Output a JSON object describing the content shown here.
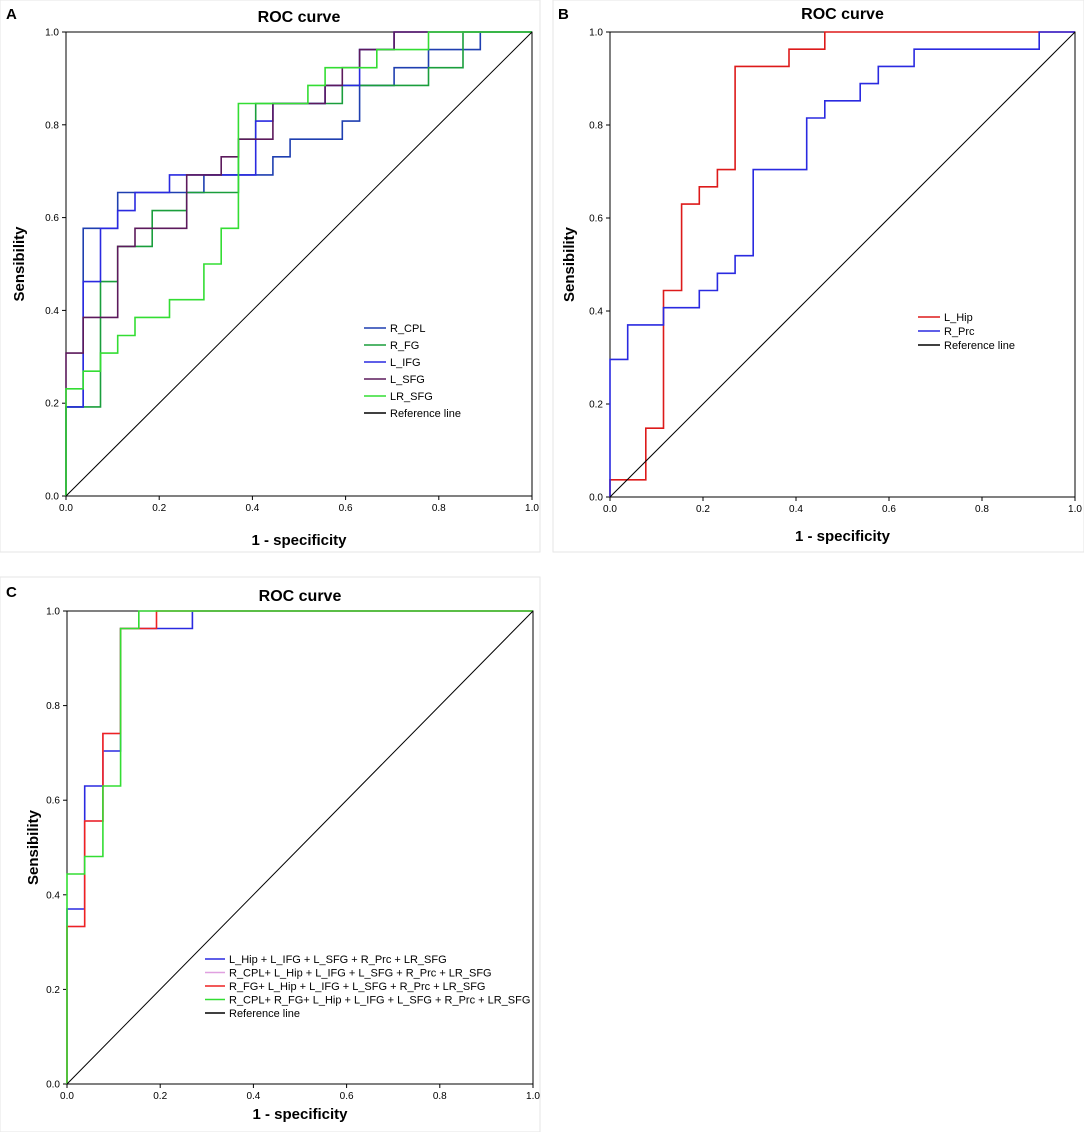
{
  "chart_data": [
    {
      "panel": "A",
      "type": "line",
      "title": "ROC curve",
      "xlabel": "1 - specificity",
      "ylabel": "Sensibility",
      "xlim": [
        0,
        1
      ],
      "ylim": [
        0,
        1
      ],
      "xticks": [
        "0.0",
        "0.2",
        "0.4",
        "0.6",
        "0.8",
        "1.0"
      ],
      "yticks": [
        "0.0",
        "0.2",
        "0.4",
        "0.6",
        "0.8",
        "1.0"
      ],
      "legend_position": "lower-right",
      "series": [
        {
          "name": "R_CPL",
          "color": "#1f3fb0",
          "points": [
            [
              0,
              0
            ],
            [
              0,
              0.192
            ],
            [
              0.037,
              0.192
            ],
            [
              0.037,
              0.577
            ],
            [
              0.074,
              0.577
            ],
            [
              0.074,
              0.577
            ],
            [
              0.111,
              0.577
            ],
            [
              0.111,
              0.654
            ],
            [
              0.296,
              0.654
            ],
            [
              0.296,
              0.692
            ],
            [
              0.444,
              0.692
            ],
            [
              0.444,
              0.731
            ],
            [
              0.481,
              0.731
            ],
            [
              0.481,
              0.769
            ],
            [
              0.593,
              0.769
            ],
            [
              0.593,
              0.808
            ],
            [
              0.63,
              0.808
            ],
            [
              0.63,
              0.885
            ],
            [
              0.704,
              0.885
            ],
            [
              0.704,
              0.923
            ],
            [
              0.778,
              0.923
            ],
            [
              0.778,
              0.962
            ],
            [
              0.889,
              0.962
            ],
            [
              0.889,
              1
            ],
            [
              1,
              1
            ]
          ]
        },
        {
          "name": "R_FG",
          "color": "#1a9e3c",
          "points": [
            [
              0,
              0
            ],
            [
              0,
              0.192
            ],
            [
              0.074,
              0.192
            ],
            [
              0.074,
              0.462
            ],
            [
              0.111,
              0.462
            ],
            [
              0.111,
              0.538
            ],
            [
              0.185,
              0.538
            ],
            [
              0.185,
              0.615
            ],
            [
              0.259,
              0.615
            ],
            [
              0.259,
              0.654
            ],
            [
              0.37,
              0.654
            ],
            [
              0.37,
              0.769
            ],
            [
              0.407,
              0.769
            ],
            [
              0.407,
              0.846
            ],
            [
              0.593,
              0.846
            ],
            [
              0.593,
              0.885
            ],
            [
              0.778,
              0.885
            ],
            [
              0.778,
              0.923
            ],
            [
              0.852,
              0.923
            ],
            [
              0.852,
              1
            ],
            [
              1,
              1
            ]
          ]
        },
        {
          "name": "L_IFG",
          "color": "#2a2ae0",
          "points": [
            [
              0,
              0
            ],
            [
              0,
              0.192
            ],
            [
              0.037,
              0.192
            ],
            [
              0.037,
              0.462
            ],
            [
              0.074,
              0.462
            ],
            [
              0.074,
              0.577
            ],
            [
              0.111,
              0.577
            ],
            [
              0.111,
              0.615
            ],
            [
              0.148,
              0.615
            ],
            [
              0.148,
              0.654
            ],
            [
              0.222,
              0.654
            ],
            [
              0.222,
              0.692
            ],
            [
              0.407,
              0.692
            ],
            [
              0.407,
              0.769
            ],
            [
              0.407,
              0.769
            ],
            [
              0.407,
              0.808
            ],
            [
              0.444,
              0.808
            ],
            [
              0.444,
              0.846
            ],
            [
              0.556,
              0.846
            ],
            [
              0.556,
              0.885
            ],
            [
              0.63,
              0.885
            ],
            [
              0.63,
              0.962
            ],
            [
              0.704,
              0.962
            ],
            [
              0.704,
              1
            ],
            [
              1,
              1
            ]
          ]
        },
        {
          "name": "L_SFG",
          "color": "#5c1a5c",
          "points": [
            [
              0,
              0
            ],
            [
              0,
              0.308
            ],
            [
              0.037,
              0.308
            ],
            [
              0.037,
              0.385
            ],
            [
              0.111,
              0.385
            ],
            [
              0.111,
              0.538
            ],
            [
              0.148,
              0.538
            ],
            [
              0.148,
              0.577
            ],
            [
              0.259,
              0.577
            ],
            [
              0.259,
              0.692
            ],
            [
              0.333,
              0.692
            ],
            [
              0.333,
              0.731
            ],
            [
              0.37,
              0.731
            ],
            [
              0.37,
              0.769
            ],
            [
              0.444,
              0.769
            ],
            [
              0.444,
              0.846
            ],
            [
              0.556,
              0.846
            ],
            [
              0.556,
              0.885
            ],
            [
              0.593,
              0.885
            ],
            [
              0.593,
              0.923
            ],
            [
              0.63,
              0.923
            ],
            [
              0.63,
              0.962
            ],
            [
              0.704,
              0.962
            ],
            [
              0.704,
              1
            ],
            [
              1,
              1
            ]
          ]
        },
        {
          "name": "LR_SFG",
          "color": "#33dd33",
          "points": [
            [
              0,
              0
            ],
            [
              0,
              0.231
            ],
            [
              0.037,
              0.231
            ],
            [
              0.037,
              0.269
            ],
            [
              0.074,
              0.269
            ],
            [
              0.074,
              0.308
            ],
            [
              0.111,
              0.308
            ],
            [
              0.111,
              0.346
            ],
            [
              0.148,
              0.346
            ],
            [
              0.148,
              0.385
            ],
            [
              0.222,
              0.385
            ],
            [
              0.222,
              0.423
            ],
            [
              0.296,
              0.423
            ],
            [
              0.296,
              0.5
            ],
            [
              0.333,
              0.5
            ],
            [
              0.333,
              0.577
            ],
            [
              0.37,
              0.577
            ],
            [
              0.37,
              0.846
            ],
            [
              0.519,
              0.846
            ],
            [
              0.519,
              0.885
            ],
            [
              0.556,
              0.885
            ],
            [
              0.556,
              0.923
            ],
            [
              0.667,
              0.923
            ],
            [
              0.667,
              0.962
            ],
            [
              0.778,
              0.962
            ],
            [
              0.778,
              1
            ],
            [
              1,
              1
            ]
          ]
        },
        {
          "name": "Reference line",
          "color": "#000000",
          "points": [
            [
              0,
              0
            ],
            [
              1,
              1
            ]
          ]
        }
      ]
    },
    {
      "panel": "B",
      "type": "line",
      "title": "ROC curve",
      "xlabel": "1 - specificity",
      "ylabel": "Sensibility",
      "xlim": [
        0,
        1
      ],
      "ylim": [
        0,
        1
      ],
      "xticks": [
        "0.0",
        "0.2",
        "0.4",
        "0.6",
        "0.8",
        "1.0"
      ],
      "yticks": [
        "0.0",
        "0.2",
        "0.4",
        "0.6",
        "0.8",
        "1.0"
      ],
      "legend_position": "right",
      "series": [
        {
          "name": "L_Hip",
          "color": "#dd1a1a",
          "points": [
            [
              0,
              0
            ],
            [
              0,
              0.037
            ],
            [
              0.077,
              0.037
            ],
            [
              0.077,
              0.148
            ],
            [
              0.115,
              0.148
            ],
            [
              0.115,
              0.444
            ],
            [
              0.154,
              0.444
            ],
            [
              0.154,
              0.63
            ],
            [
              0.192,
              0.63
            ],
            [
              0.192,
              0.667
            ],
            [
              0.231,
              0.667
            ],
            [
              0.231,
              0.704
            ],
            [
              0.269,
              0.704
            ],
            [
              0.269,
              0.926
            ],
            [
              0.385,
              0.926
            ],
            [
              0.385,
              0.963
            ],
            [
              0.462,
              0.963
            ],
            [
              0.462,
              1
            ],
            [
              1,
              1
            ]
          ]
        },
        {
          "name": "R_Prc",
          "color": "#2a2ae0",
          "points": [
            [
              0,
              0
            ],
            [
              0,
              0.296
            ],
            [
              0.038,
              0.296
            ],
            [
              0.038,
              0.37
            ],
            [
              0.115,
              0.37
            ],
            [
              0.115,
              0.407
            ],
            [
              0.192,
              0.407
            ],
            [
              0.192,
              0.444
            ],
            [
              0.231,
              0.444
            ],
            [
              0.231,
              0.481
            ],
            [
              0.269,
              0.481
            ],
            [
              0.269,
              0.519
            ],
            [
              0.308,
              0.519
            ],
            [
              0.308,
              0.704
            ],
            [
              0.423,
              0.704
            ],
            [
              0.423,
              0.815
            ],
            [
              0.462,
              0.815
            ],
            [
              0.462,
              0.852
            ],
            [
              0.538,
              0.852
            ],
            [
              0.538,
              0.889
            ],
            [
              0.577,
              0.889
            ],
            [
              0.577,
              0.926
            ],
            [
              0.654,
              0.926
            ],
            [
              0.654,
              0.963
            ],
            [
              0.923,
              0.963
            ],
            [
              0.923,
              1
            ],
            [
              1,
              1
            ]
          ]
        },
        {
          "name": "Reference line",
          "color": "#000000",
          "points": [
            [
              0,
              0
            ],
            [
              1,
              1
            ]
          ]
        }
      ]
    },
    {
      "panel": "C",
      "type": "line",
      "title": "ROC curve",
      "xlabel": "1 - specificity",
      "ylabel": "Sensibility",
      "xlim": [
        0,
        1
      ],
      "ylim": [
        0,
        1
      ],
      "xticks": [
        "0.0",
        "0.2",
        "0.4",
        "0.6",
        "0.8",
        "1.0"
      ],
      "yticks": [
        "0.0",
        "0.2",
        "0.4",
        "0.6",
        "0.8",
        "1.0"
      ],
      "legend_position": "lower-left",
      "series": [
        {
          "name": "L_Hip + L_IFG + L_SFG + R_Prc + LR_SFG",
          "color": "#2a2ae0",
          "points": [
            [
              0,
              0
            ],
            [
              0,
              0.37
            ],
            [
              0.038,
              0.37
            ],
            [
              0.038,
              0.63
            ],
            [
              0.077,
              0.63
            ],
            [
              0.077,
              0.704
            ],
            [
              0.115,
              0.704
            ],
            [
              0.115,
              0.963
            ],
            [
              0.192,
              0.963
            ],
            [
              0.192,
              0.963
            ],
            [
              0.269,
              0.963
            ],
            [
              0.269,
              1
            ],
            [
              1,
              1
            ]
          ]
        },
        {
          "name": "R_CPL+ L_Hip + L_IFG + L_SFG + R_Prc + LR_SFG",
          "color": "#e0a0e0",
          "points": [
            [
              0,
              0
            ],
            [
              0,
              0.333
            ],
            [
              0.038,
              0.333
            ],
            [
              0.038,
              0.556
            ],
            [
              0.077,
              0.556
            ],
            [
              0.077,
              0.741
            ],
            [
              0.115,
              0.741
            ],
            [
              0.115,
              0.963
            ],
            [
              0.154,
              0.963
            ],
            [
              0.154,
              1
            ],
            [
              1,
              1
            ]
          ]
        },
        {
          "name": "R_FG+ L_Hip + L_IFG + L_SFG + R_Prc + LR_SFG",
          "color": "#ee2222",
          "points": [
            [
              0,
              0
            ],
            [
              0,
              0.333
            ],
            [
              0.038,
              0.333
            ],
            [
              0.038,
              0.556
            ],
            [
              0.077,
              0.556
            ],
            [
              0.077,
              0.741
            ],
            [
              0.115,
              0.741
            ],
            [
              0.115,
              0.963
            ],
            [
              0.192,
              0.963
            ],
            [
              0.192,
              1
            ],
            [
              1,
              1
            ]
          ]
        },
        {
          "name": "R_CPL+ R_FG+ L_Hip + L_IFG + L_SFG + R_Prc + LR_SFG",
          "color": "#33dd33",
          "points": [
            [
              0,
              0
            ],
            [
              0,
              0.444
            ],
            [
              0.038,
              0.444
            ],
            [
              0.038,
              0.481
            ],
            [
              0.077,
              0.481
            ],
            [
              0.077,
              0.63
            ],
            [
              0.115,
              0.63
            ],
            [
              0.115,
              0.963
            ],
            [
              0.154,
              0.963
            ],
            [
              0.154,
              1
            ],
            [
              1,
              1
            ]
          ]
        },
        {
          "name": "Reference line",
          "color": "#000000",
          "points": [
            [
              0,
              0
            ],
            [
              1,
              1
            ]
          ]
        }
      ]
    }
  ]
}
